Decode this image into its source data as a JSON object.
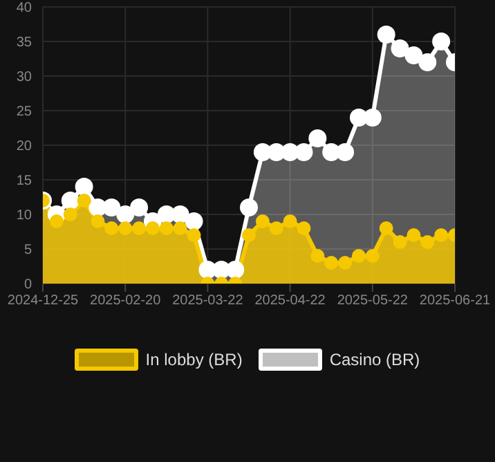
{
  "chart_data": {
    "type": "area",
    "categories": [
      "2024-12-25",
      null,
      null,
      null,
      null,
      null,
      "2025-02-20",
      null,
      null,
      null,
      null,
      null,
      "2025-03-22",
      null,
      null,
      null,
      null,
      null,
      "2025-04-22",
      null,
      null,
      null,
      null,
      null,
      "2025-05-22",
      null,
      null,
      null,
      null,
      null,
      "2025-06-21"
    ],
    "series": [
      {
        "name": "In lobby (BR)",
        "color": "#f5c800",
        "values": [
          12,
          9,
          10,
          12,
          9,
          8,
          8,
          8,
          8,
          8,
          8,
          7,
          0,
          0,
          0,
          7,
          9,
          8,
          9,
          8,
          4,
          3,
          3,
          4,
          4,
          8,
          6,
          7,
          6,
          7,
          7
        ]
      },
      {
        "name": "Casino (BR)",
        "color": "#ffffff",
        "values": [
          12,
          10,
          12,
          14,
          11,
          11,
          10,
          11,
          9,
          10,
          10,
          9,
          2,
          2,
          2,
          11,
          19,
          19,
          19,
          19,
          21,
          19,
          19,
          24,
          24,
          36,
          34,
          33,
          32,
          35,
          32
        ]
      }
    ],
    "ylim": [
      0,
      40
    ],
    "yticks": [
      0,
      5,
      10,
      15,
      20,
      25,
      30,
      35,
      40
    ],
    "grid": true,
    "legend": "bottom",
    "marker": "circle",
    "line_style": "solid"
  }
}
